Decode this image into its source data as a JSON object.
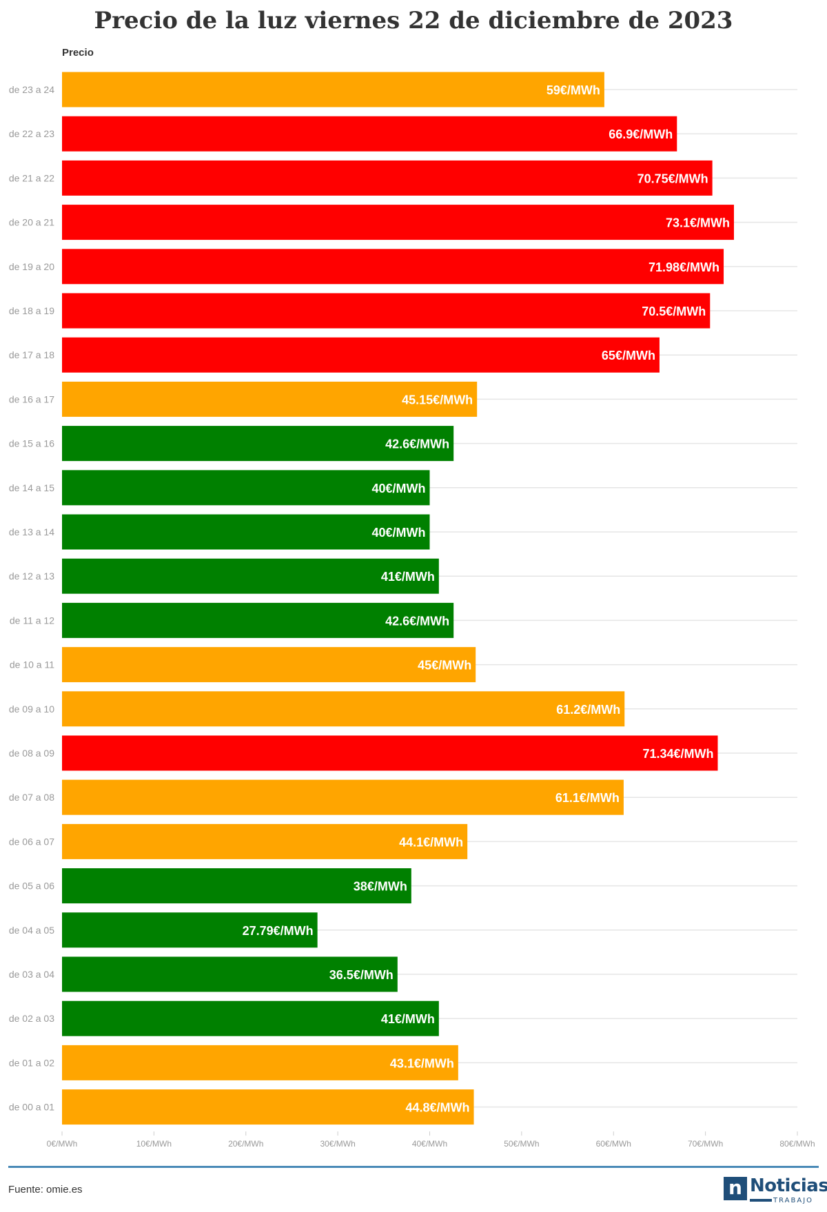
{
  "title": "Precio de la luz viernes 22 de diciembre de 2023",
  "source": "Fuente: omie.es",
  "logo": {
    "mark": "n",
    "word": "Noticias",
    "sub": "TRABAJO"
  },
  "colors": {
    "high": "#ff0000",
    "mid": "#ffa500",
    "low": "#008000",
    "grid": "#e5e5e5",
    "tick": "#999999"
  },
  "chart_data": {
    "type": "bar",
    "orientation": "horizontal",
    "series_label": "Precio",
    "categories": [
      "de 23 a 24",
      "de 22 a 23",
      "de 21 a 22",
      "de 20 a 21",
      "de 19 a 20",
      "de 18 a 19",
      "de 17 a 18",
      "de 16 a 17",
      "de 15 a 16",
      "de 14 a 15",
      "de 13 a 14",
      "de 12 a 13",
      "de 11 a 12",
      "de 10 a 11",
      "de 09 a 10",
      "de 08 a 09",
      "de 07 a 08",
      "de 06 a 07",
      "de 05 a 06",
      "de 04 a 05",
      "de 03 a 04",
      "de 02 a 03",
      "de 01 a 02",
      "de 00 a 01"
    ],
    "values": [
      59,
      66.9,
      70.75,
      73.1,
      71.98,
      70.5,
      65,
      45.15,
      42.6,
      40,
      40,
      41,
      42.6,
      45,
      61.2,
      71.34,
      61.1,
      44.1,
      38,
      27.79,
      36.5,
      41,
      43.1,
      44.8
    ],
    "labels": [
      "59€/MWh",
      "66.9€/MWh",
      "70.75€/MWh",
      "73.1€/MWh",
      "71.98€/MWh",
      "70.5€/MWh",
      "65€/MWh",
      "45.15€/MWh",
      "42.6€/MWh",
      "40€/MWh",
      "40€/MWh",
      "41€/MWh",
      "42.6€/MWh",
      "45€/MWh",
      "61.2€/MWh",
      "71.34€/MWh",
      "61.1€/MWh",
      "44.1€/MWh",
      "38€/MWh",
      "27.79€/MWh",
      "36.5€/MWh",
      "41€/MWh",
      "43.1€/MWh",
      "44.8€/MWh"
    ],
    "bar_colors": [
      "mid",
      "high",
      "high",
      "high",
      "high",
      "high",
      "high",
      "mid",
      "low",
      "low",
      "low",
      "low",
      "low",
      "mid",
      "mid",
      "high",
      "mid",
      "mid",
      "low",
      "low",
      "low",
      "low",
      "mid",
      "mid"
    ],
    "xlim": [
      0,
      80
    ],
    "xticks": [
      0,
      10,
      20,
      30,
      40,
      50,
      60,
      70,
      80
    ],
    "xtick_labels": [
      "0€/MWh",
      "10€/MWh",
      "20€/MWh",
      "30€/MWh",
      "40€/MWh",
      "50€/MWh",
      "60€/MWh",
      "70€/MWh",
      "80€/MWh"
    ],
    "grid": true
  }
}
